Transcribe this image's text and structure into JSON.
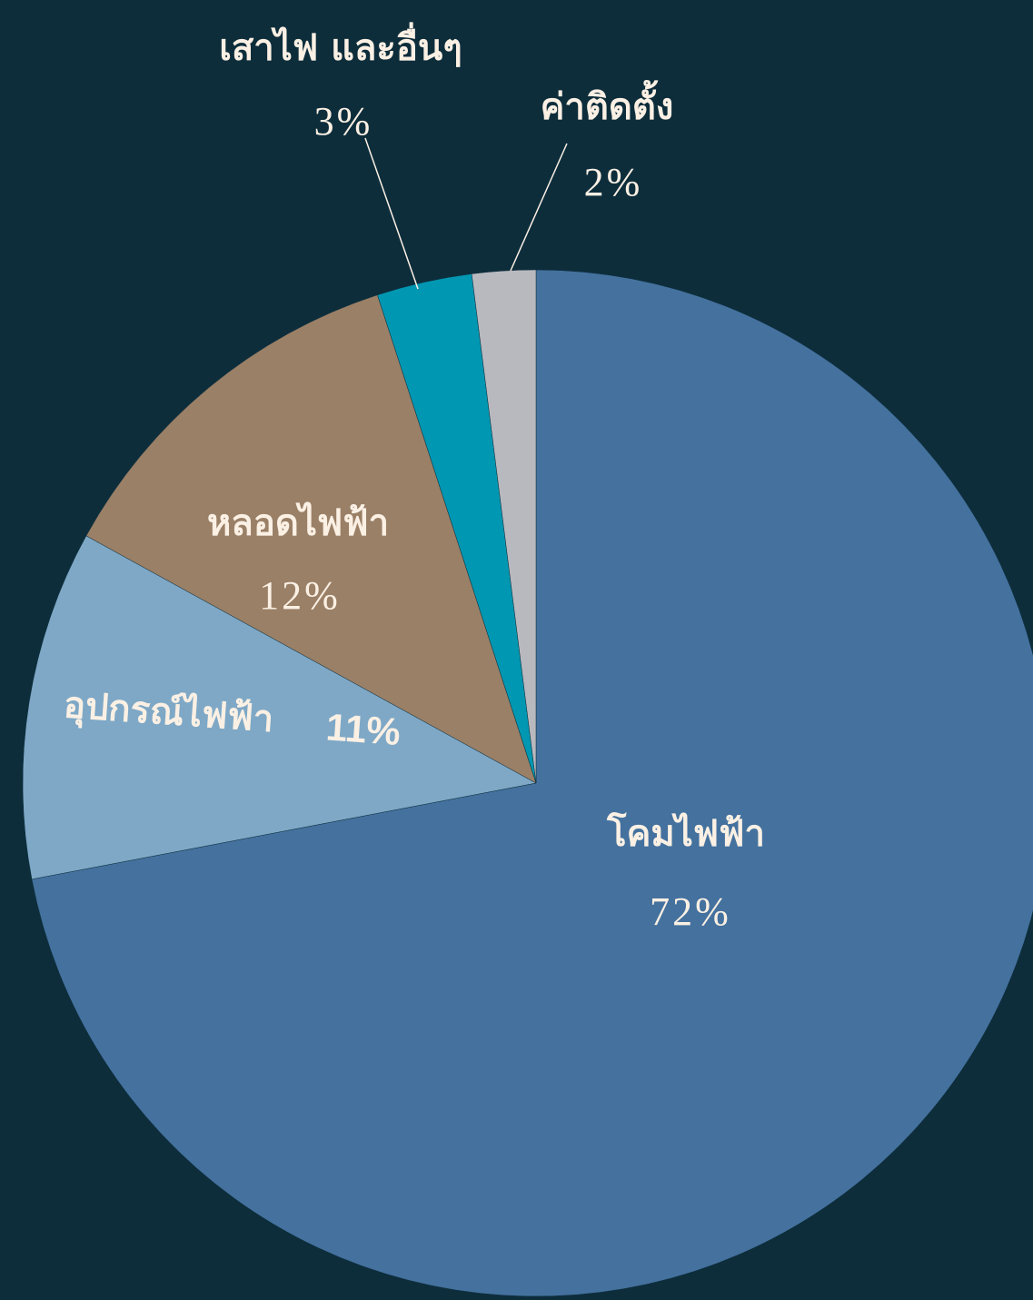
{
  "chart_data": {
    "type": "pie",
    "categories": [
      "โคมไฟฟ้า",
      "อุปกรณ์ไฟฟ้า",
      "หลอดไฟฟ้า",
      "เสาไฟ และอื่นๆ",
      "ค่าติดตั้ง"
    ],
    "values": [
      72,
      11,
      12,
      3,
      2
    ],
    "value_labels": [
      "72%",
      "11%",
      "12%",
      "3%",
      "2%"
    ],
    "colors": [
      "#44719e",
      "#7ea8c6",
      "#9a8067",
      "#0097b2",
      "#b8b9bf"
    ]
  }
}
